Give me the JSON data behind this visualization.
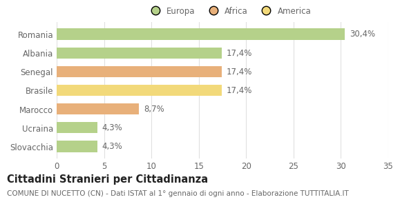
{
  "categories": [
    "Romania",
    "Albania",
    "Senegal",
    "Brasile",
    "Marocco",
    "Ucraina",
    "Slovacchia"
  ],
  "values": [
    30.4,
    17.4,
    17.4,
    17.4,
    8.7,
    4.3,
    4.3
  ],
  "labels": [
    "30,4%",
    "17,4%",
    "17,4%",
    "17,4%",
    "8,7%",
    "4,3%",
    "4,3%"
  ],
  "colors": [
    "#b5d18a",
    "#b5d18a",
    "#e8b07a",
    "#f2d97a",
    "#e8b07a",
    "#b5d18a",
    "#b5d18a"
  ],
  "legend_items": [
    {
      "label": "Europa",
      "color": "#b5d18a"
    },
    {
      "label": "Africa",
      "color": "#e8b07a"
    },
    {
      "label": "America",
      "color": "#f2d97a"
    }
  ],
  "xlim": [
    0,
    35
  ],
  "xticks": [
    0,
    5,
    10,
    15,
    20,
    25,
    30,
    35
  ],
  "title_bold": "Cittadini Stranieri per Cittadinanza",
  "subtitle": "COMUNE DI NUCETTO (CN) - Dati ISTAT al 1° gennaio di ogni anno - Elaborazione TUTTITALIA.IT",
  "background_color": "#ffffff",
  "grid_color": "#e0e0e0",
  "bar_height": 0.6,
  "label_fontsize": 8.5,
  "tick_fontsize": 8.5,
  "title_fontsize": 10.5,
  "subtitle_fontsize": 7.5,
  "text_color": "#666666",
  "title_color": "#222222"
}
